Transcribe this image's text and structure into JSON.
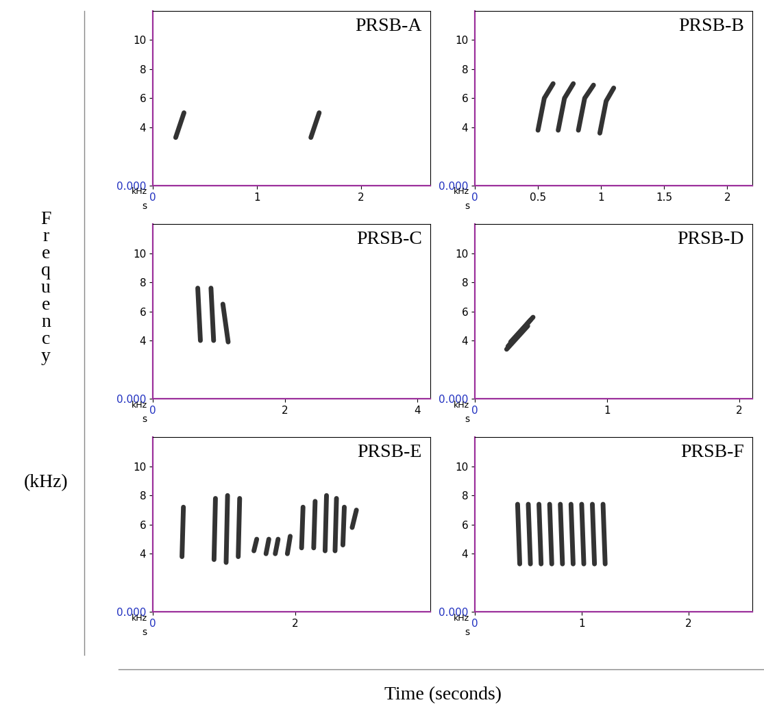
{
  "figure": {
    "y_label_word": "Frequency",
    "y_label_unit": "(kHz)",
    "x_label": "Time (seconds)"
  },
  "chart_data": [
    {
      "type": "spectrogram",
      "title": "PRSB-A",
      "x_label": "s",
      "y_label": "kHz",
      "color": "#333333",
      "xlim": [
        0,
        2.67
      ],
      "ylim": [
        0,
        12
      ],
      "xticks": [
        0,
        1,
        2
      ],
      "yticks": [
        {
          "value": 0,
          "label": "0.000"
        },
        4,
        6,
        8,
        10
      ],
      "syllables": [
        {
          "t": [
            0.22,
            0.3
          ],
          "f": [
            3.3,
            5.0
          ]
        },
        {
          "t": [
            1.52,
            1.6
          ],
          "f": [
            3.3,
            5.0
          ]
        }
      ]
    },
    {
      "type": "spectrogram",
      "title": "PRSB-B",
      "x_label": "s",
      "y_label": "kHz",
      "color": "#333333",
      "xlim": [
        0,
        2.2
      ],
      "ylim": [
        0,
        12
      ],
      "xticks": [
        0,
        0.5,
        1,
        1.5,
        2
      ],
      "yticks": [
        {
          "value": 0,
          "label": "0.000"
        },
        4,
        6,
        8,
        10
      ],
      "syllables": [
        {
          "t": [
            0.5,
            0.55,
            0.62
          ],
          "f": [
            3.8,
            6.0,
            7.0
          ]
        },
        {
          "t": [
            0.66,
            0.71,
            0.78
          ],
          "f": [
            3.8,
            6.0,
            7.0
          ]
        },
        {
          "t": [
            0.82,
            0.87,
            0.94
          ],
          "f": [
            3.8,
            6.0,
            6.9
          ]
        },
        {
          "t": [
            0.99,
            1.04,
            1.1
          ],
          "f": [
            3.6,
            5.8,
            6.7
          ]
        }
      ]
    },
    {
      "type": "spectrogram",
      "title": "PRSB-C",
      "x_label": "s",
      "y_label": "kHz",
      "color": "#333333",
      "xlim": [
        0,
        4.2
      ],
      "ylim": [
        0,
        12
      ],
      "xticks": [
        0,
        2,
        4
      ],
      "yticks": [
        {
          "value": 0,
          "label": "0.000"
        },
        4,
        6,
        8,
        10
      ],
      "syllables": [
        {
          "t": [
            0.68,
            0.72
          ],
          "f": [
            7.6,
            4.0
          ]
        },
        {
          "t": [
            0.88,
            0.92
          ],
          "f": [
            7.6,
            4.0
          ]
        },
        {
          "t": [
            1.06,
            1.14
          ],
          "f": [
            6.5,
            3.9
          ]
        }
      ]
    },
    {
      "type": "spectrogram",
      "title": "PRSB-D",
      "x_label": "s",
      "y_label": "kHz",
      "color": "#333333",
      "xlim": [
        0,
        2.1
      ],
      "ylim": [
        0,
        12
      ],
      "xticks": [
        0,
        1,
        2
      ],
      "yticks": [
        {
          "value": 0,
          "label": "0.000"
        },
        4,
        6,
        8,
        10
      ],
      "syllables": [
        {
          "t": [
            0.25,
            0.42
          ],
          "f": [
            3.6,
            5.4
          ]
        },
        {
          "t": [
            0.27,
            0.44
          ],
          "f": [
            3.9,
            5.6
          ]
        },
        {
          "t": [
            0.24,
            0.4
          ],
          "f": [
            3.4,
            5.0
          ]
        }
      ]
    },
    {
      "type": "spectrogram",
      "title": "PRSB-E",
      "x_label": "s",
      "y_label": "kHz",
      "color": "#333333",
      "xlim": [
        0,
        3.9
      ],
      "ylim": [
        0,
        12
      ],
      "xticks": [
        0,
        2
      ],
      "yticks": [
        {
          "value": 0,
          "label": "0.000"
        },
        4,
        6,
        8,
        10
      ],
      "syllables": [
        {
          "t": [
            0.41,
            0.43
          ],
          "f": [
            3.8,
            7.2
          ]
        },
        {
          "t": [
            0.86,
            0.88
          ],
          "f": [
            3.6,
            7.8
          ]
        },
        {
          "t": [
            1.03,
            1.05
          ],
          "f": [
            3.4,
            8.0
          ]
        },
        {
          "t": [
            1.2,
            1.22
          ],
          "f": [
            3.8,
            7.8
          ]
        },
        {
          "t": [
            1.42,
            1.46
          ],
          "f": [
            4.2,
            5.0
          ]
        },
        {
          "t": [
            1.59,
            1.63
          ],
          "f": [
            4.0,
            5.0
          ]
        },
        {
          "t": [
            1.72,
            1.76
          ],
          "f": [
            4.0,
            5.0
          ]
        },
        {
          "t": [
            1.89,
            1.93
          ],
          "f": [
            4.0,
            5.2
          ]
        },
        {
          "t": [
            2.09,
            2.11
          ],
          "f": [
            4.4,
            7.2
          ]
        },
        {
          "t": [
            2.26,
            2.28
          ],
          "f": [
            4.4,
            7.6
          ]
        },
        {
          "t": [
            2.42,
            2.44
          ],
          "f": [
            4.2,
            8.0
          ]
        },
        {
          "t": [
            2.56,
            2.58
          ],
          "f": [
            4.2,
            7.8
          ]
        },
        {
          "t": [
            2.67,
            2.69
          ],
          "f": [
            4.6,
            7.2
          ]
        },
        {
          "t": [
            2.8,
            2.86
          ],
          "f": [
            5.8,
            7.0
          ]
        }
      ]
    },
    {
      "type": "spectrogram",
      "title": "PRSB-F",
      "x_label": "s",
      "y_label": "kHz",
      "color": "#333333",
      "xlim": [
        0,
        2.6
      ],
      "ylim": [
        0,
        12
      ],
      "xticks": [
        0,
        1,
        2
      ],
      "yticks": [
        {
          "value": 0,
          "label": "0.000"
        },
        4,
        6,
        8,
        10
      ],
      "syllables": [
        {
          "t": [
            0.4,
            0.42
          ],
          "f": [
            7.4,
            3.3
          ]
        },
        {
          "t": [
            0.5,
            0.52
          ],
          "f": [
            7.4,
            3.3
          ]
        },
        {
          "t": [
            0.6,
            0.62
          ],
          "f": [
            7.4,
            3.3
          ]
        },
        {
          "t": [
            0.7,
            0.72
          ],
          "f": [
            7.4,
            3.3
          ]
        },
        {
          "t": [
            0.8,
            0.82
          ],
          "f": [
            7.4,
            3.3
          ]
        },
        {
          "t": [
            0.9,
            0.92
          ],
          "f": [
            7.4,
            3.3
          ]
        },
        {
          "t": [
            1.0,
            1.02
          ],
          "f": [
            7.4,
            3.3
          ]
        },
        {
          "t": [
            1.1,
            1.12
          ],
          "f": [
            7.4,
            3.3
          ]
        },
        {
          "t": [
            1.2,
            1.22
          ],
          "f": [
            7.4,
            3.3
          ]
        }
      ]
    }
  ]
}
